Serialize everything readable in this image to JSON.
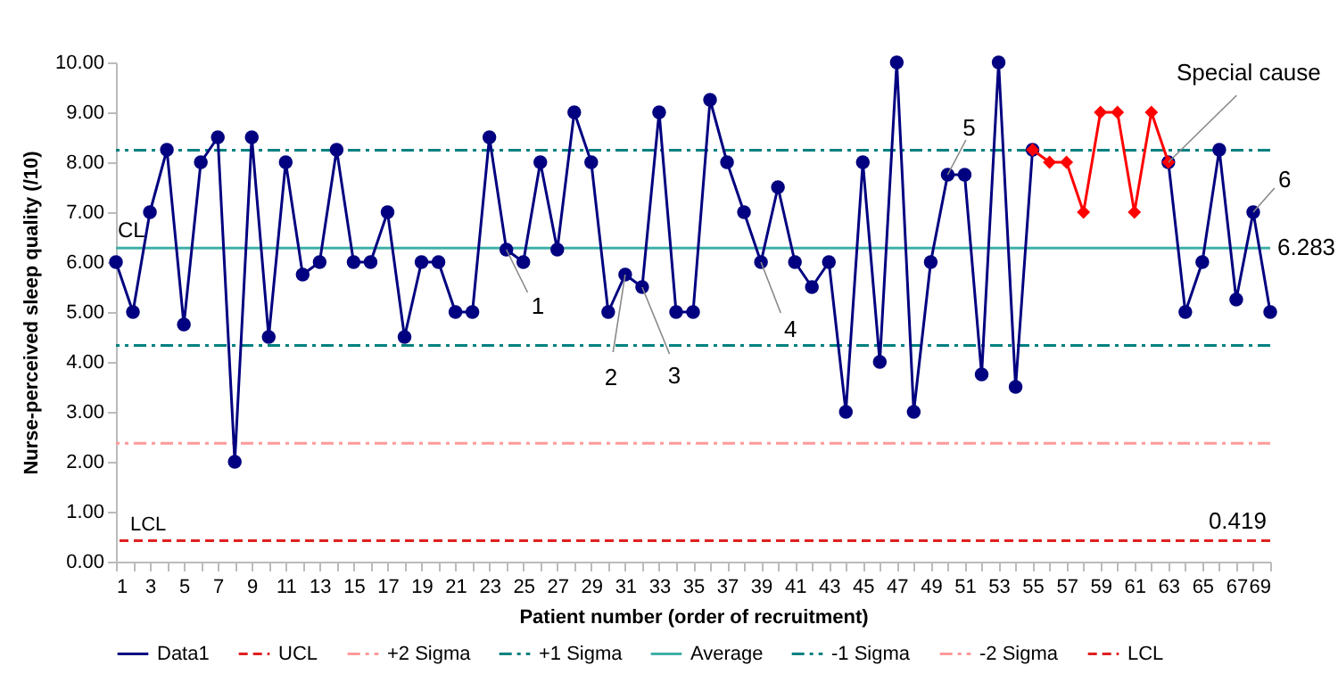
{
  "chart_data": {
    "type": "line",
    "xlabel": "Patient number (order of recruitment)",
    "ylabel": "Nurse-perceived sleep quality (/10)",
    "x": [
      1,
      2,
      3,
      4,
      5,
      6,
      7,
      8,
      9,
      10,
      11,
      12,
      13,
      14,
      15,
      16,
      17,
      18,
      19,
      20,
      21,
      22,
      23,
      24,
      25,
      26,
      27,
      28,
      29,
      30,
      31,
      32,
      33,
      34,
      35,
      36,
      37,
      38,
      39,
      40,
      41,
      42,
      43,
      44,
      45,
      46,
      47,
      48,
      49,
      50,
      51,
      52,
      53,
      54,
      55,
      56,
      57,
      58,
      59,
      60,
      61,
      62,
      63,
      64,
      65,
      66,
      67,
      68,
      69
    ],
    "xlim": [
      1,
      69
    ],
    "xticks": [
      1,
      {
        "value": 2,
        "label": null
      },
      3,
      {
        "value": 4,
        "label": null
      },
      5,
      {
        "value": 6,
        "label": null
      },
      7,
      {
        "value": 8,
        "label": null
      },
      9,
      {
        "value": 10,
        "label": null
      },
      11,
      {
        "value": 12,
        "label": null
      },
      13,
      {
        "value": 14,
        "label": null
      },
      15,
      {
        "value": 16,
        "label": null
      },
      17,
      {
        "value": 18,
        "label": null
      },
      19,
      {
        "value": 20,
        "label": null
      },
      21,
      {
        "value": 22,
        "label": null
      },
      23,
      {
        "value": 24,
        "label": null
      },
      25,
      {
        "value": 26,
        "label": null
      },
      27,
      {
        "value": 28,
        "label": null
      },
      29,
      {
        "value": 30,
        "label": null
      },
      31,
      {
        "value": 32,
        "label": null
      },
      33,
      {
        "value": 34,
        "label": null
      },
      35,
      {
        "value": 36,
        "label": null
      },
      37,
      {
        "value": 38,
        "label": null
      },
      39,
      {
        "value": 40,
        "label": null
      },
      41,
      {
        "value": 42,
        "label": null
      },
      43,
      {
        "value": 44,
        "label": null
      },
      45,
      {
        "value": 46,
        "label": null
      },
      47,
      {
        "value": 48,
        "label": null
      },
      49,
      {
        "value": 50,
        "label": null
      },
      51,
      {
        "value": 52,
        "label": null
      },
      53,
      {
        "value": 54,
        "label": null
      },
      55,
      {
        "value": 56,
        "label": null
      },
      57,
      {
        "value": 58,
        "label": null
      },
      59,
      {
        "value": 60,
        "label": null
      },
      61,
      {
        "value": 62,
        "label": null
      },
      63,
      {
        "value": 64,
        "label": null
      },
      65,
      {
        "value": 66,
        "label": null
      },
      67,
      {
        "value": 68,
        "label": null
      },
      69
    ],
    "ylim": [
      0,
      10
    ],
    "yticks": [
      {
        "value": 0,
        "label": "0.00"
      },
      {
        "value": 1,
        "label": "1.00"
      },
      {
        "value": 2,
        "label": "2.00"
      },
      {
        "value": 3,
        "label": "3.00"
      },
      {
        "value": 4,
        "label": "4.00"
      },
      {
        "value": 5,
        "label": "5.00"
      },
      {
        "value": 6,
        "label": "6.00"
      },
      {
        "value": 7,
        "label": "7.00"
      },
      {
        "value": 8,
        "label": "8.00"
      },
      {
        "value": 9,
        "label": "9.00"
      },
      {
        "value": 10,
        "label": "10.00"
      }
    ],
    "series": [
      {
        "name": "Data1",
        "color": "#000080",
        "marker": "circle",
        "values": [
          6,
          5,
          7,
          8.25,
          4.75,
          8,
          8.5,
          2,
          8.5,
          4.5,
          8,
          5.75,
          6,
          8.25,
          6,
          6,
          7,
          4.5,
          6,
          6,
          5,
          5,
          8.5,
          6.25,
          6,
          8,
          6.25,
          9,
          8,
          5,
          5.75,
          5.5,
          9,
          5,
          5,
          9.25,
          8,
          7,
          6,
          7.5,
          6,
          5.5,
          6,
          3,
          8,
          4,
          10,
          3,
          6,
          7.75,
          7.75,
          3.75,
          10,
          3.5,
          8.25,
          null,
          null,
          null,
          null,
          null,
          null,
          null,
          8,
          5,
          6,
          8.25,
          5.25,
          7,
          5
        ]
      },
      {
        "color": "#ff0000",
        "marker": "diamond",
        "x": [
          55,
          56,
          57,
          58,
          59,
          60,
          61,
          62,
          63
        ],
        "values": [
          8.25,
          8,
          8,
          7,
          9,
          9,
          7,
          9,
          8
        ]
      }
    ],
    "ref_lines": [
      {
        "value": null,
        "label": "UCL",
        "color": "#e02020",
        "line_style": "dashed"
      },
      {
        "value": null,
        "label": "+2 Sigma",
        "color": "#ff9999",
        "line_style": "dashdot"
      },
      {
        "axis": "y",
        "value": 8.24,
        "label": "+1 Sigma",
        "color": "#008080",
        "line_style": "dashdot"
      },
      {
        "axis": "y",
        "value": 6.283,
        "label": "Average",
        "color": "#40b0a8",
        "line_style": "solid"
      },
      {
        "axis": "y",
        "value": 4.33,
        "label": "-1 Sigma",
        "color": "#008080",
        "line_style": "dashdot"
      },
      {
        "axis": "y",
        "value": 2.37,
        "label": "-2 Sigma",
        "color": "#ff9999",
        "line_style": "dashdot"
      },
      {
        "axis": "y",
        "value": 0.419,
        "label": "LCL",
        "color": "#e02020",
        "line_style": "dashed"
      }
    ],
    "annotations": [
      {
        "text": "CL",
        "x": 1,
        "y": 6.283
      },
      {
        "text": "6.283",
        "x": 69,
        "y": 6.283
      },
      {
        "text": "LCL",
        "x": 1,
        "y": 0.419
      },
      {
        "text": "0.419",
        "x": 69,
        "y": 0.419
      },
      {
        "text": "1",
        "x": 24,
        "y": 6.25
      },
      {
        "text": "2",
        "x": 31,
        "y": 5.75
      },
      {
        "text": "3",
        "x": 32,
        "y": 5.5
      },
      {
        "text": "4",
        "x": 39,
        "y": 6
      },
      {
        "text": "5",
        "x": 50,
        "y": 7.75
      },
      {
        "text": "6",
        "x": 68,
        "y": 7
      },
      {
        "text": "Special cause",
        "x": 63,
        "y": 8
      }
    ],
    "legend": "bottom",
    "grid": false
  }
}
